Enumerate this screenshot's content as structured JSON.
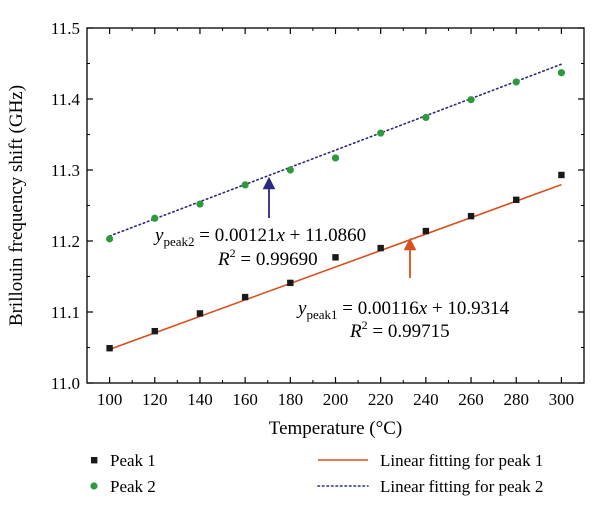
{
  "chart_data": {
    "type": "scatter",
    "xlabel": "Temperature (°C)",
    "ylabel": "Brillouin frequency shift (GHz)",
    "xlim": [
      90,
      310
    ],
    "ylim": [
      11.0,
      11.5
    ],
    "xticks": [
      100,
      120,
      140,
      160,
      180,
      200,
      220,
      240,
      260,
      280,
      300
    ],
    "yticks": [
      11.0,
      11.1,
      11.2,
      11.3,
      11.4,
      11.5
    ],
    "x_tick_labels": [
      "100",
      "120",
      "140",
      "160",
      "180",
      "200",
      "220",
      "240",
      "260",
      "280",
      "300"
    ],
    "y_tick_labels": [
      "11.0",
      "11.1",
      "11.2",
      "11.3",
      "11.4",
      "11.5"
    ],
    "grid": false,
    "legend_position": "bottom",
    "series": [
      {
        "name": "Peak 1",
        "marker": "square",
        "color": "#1a1a1a",
        "x": [
          100,
          120,
          140,
          160,
          180,
          200,
          220,
          240,
          260,
          280,
          300
        ],
        "y": [
          11.049,
          11.073,
          11.098,
          11.121,
          11.141,
          11.177,
          11.19,
          11.214,
          11.235,
          11.258,
          11.293
        ]
      },
      {
        "name": "Peak 2",
        "marker": "circle",
        "color": "#2e9a3e",
        "x": [
          100,
          120,
          140,
          160,
          180,
          200,
          220,
          240,
          260,
          280,
          300
        ],
        "y": [
          11.203,
          11.232,
          11.252,
          11.279,
          11.3,
          11.317,
          11.352,
          11.374,
          11.399,
          11.424,
          11.437
        ]
      }
    ],
    "fits": [
      {
        "name": "Linear fitting for peak 1",
        "slope": 0.00116,
        "intercept": 10.9314,
        "style": "solid",
        "color": "#d9501e",
        "eq_prefix": "y",
        "eq_sub": "peak1",
        "eq_rest": " = 0.00116x + 10.9314",
        "r2_text": " = 0.99715",
        "arrow_color": "#d9501e"
      },
      {
        "name": "Linear fitting for peak 2",
        "slope": 0.00121,
        "intercept": 11.086,
        "style": "dotted",
        "color": "#2a2a7a",
        "eq_prefix": "y",
        "eq_sub": "peak2",
        "eq_rest": " = 0.00121x + 11.0860",
        "r2_text": " = 0.99690",
        "arrow_color": "#2a2a80"
      }
    ],
    "r2_prefix": "R",
    "r2_sup": "2"
  }
}
